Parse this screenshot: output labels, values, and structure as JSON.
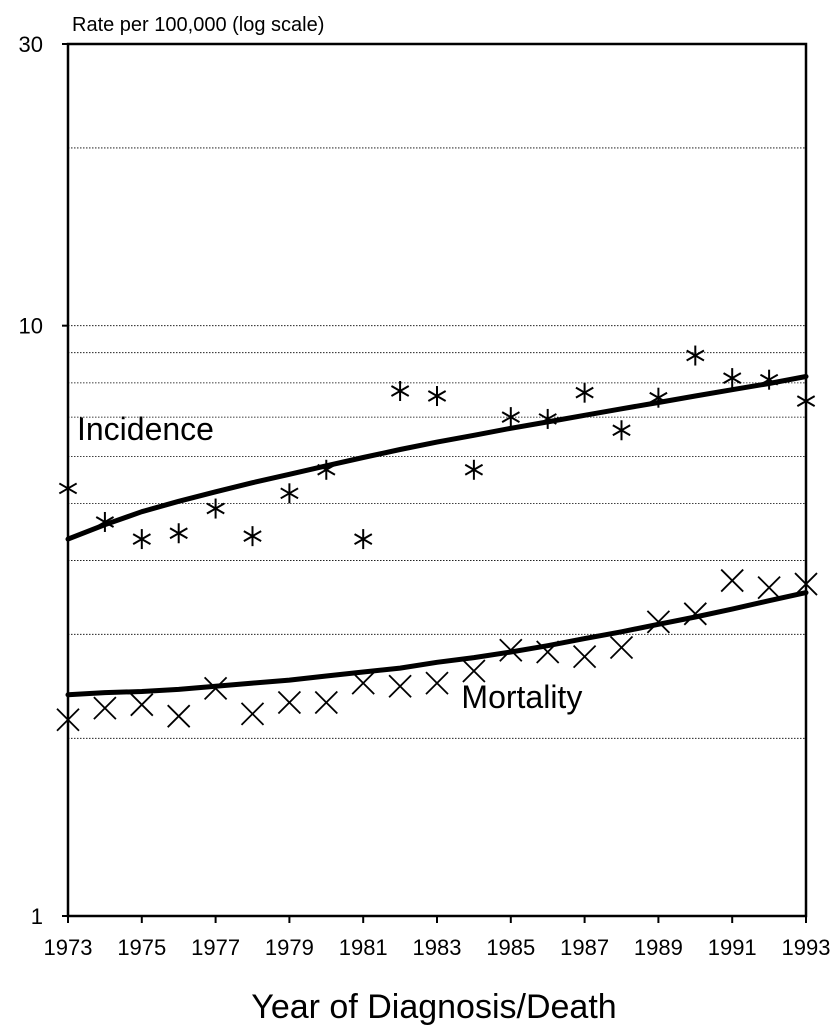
{
  "chart_data": {
    "type": "scatter",
    "ylabel": "Rate per 100,000 (log scale)",
    "xlabel": "Year of Diagnosis/Death",
    "yscale": "log",
    "ylim": [
      1,
      30
    ],
    "xlim": [
      1973,
      1993
    ],
    "y_ticks": [
      {
        "value": 1,
        "label": "1"
      },
      {
        "value": 10,
        "label": "10"
      },
      {
        "value": 30,
        "label": "30"
      }
    ],
    "y_gridlines": [
      2,
      3,
      4,
      5,
      6,
      7,
      8,
      9,
      10,
      20
    ],
    "x_ticks": [
      {
        "value": 1973,
        "label": "1973"
      },
      {
        "value": 1975,
        "label": "1975"
      },
      {
        "value": 1977,
        "label": "1977"
      },
      {
        "value": 1979,
        "label": "1979"
      },
      {
        "value": 1981,
        "label": "1981"
      },
      {
        "value": 1983,
        "label": "1983"
      },
      {
        "value": 1985,
        "label": "1985"
      },
      {
        "value": 1987,
        "label": "1987"
      },
      {
        "value": 1989,
        "label": "1989"
      },
      {
        "value": 1991,
        "label": "1991"
      },
      {
        "value": 1993,
        "label": "1993"
      }
    ],
    "series": [
      {
        "name": "Incidence",
        "marker": "asterisk",
        "label_at": [
          1975.1,
          6.4
        ],
        "x": [
          1973,
          1974,
          1975,
          1976,
          1977,
          1978,
          1979,
          1980,
          1981,
          1982,
          1983,
          1984,
          1985,
          1986,
          1987,
          1988,
          1989,
          1990,
          1991,
          1992,
          1993
        ],
        "y": [
          5.3,
          4.65,
          4.35,
          4.45,
          4.9,
          4.4,
          5.2,
          5.7,
          4.35,
          7.75,
          7.6,
          5.7,
          7.0,
          6.95,
          7.7,
          6.65,
          7.55,
          8.9,
          8.15,
          8.1,
          7.45
        ],
        "trend": [
          4.35,
          4.6,
          4.84,
          5.04,
          5.23,
          5.42,
          5.6,
          5.79,
          5.98,
          6.17,
          6.35,
          6.52,
          6.7,
          6.87,
          7.05,
          7.23,
          7.41,
          7.6,
          7.79,
          7.98,
          8.2
        ]
      },
      {
        "name": "Mortality",
        "marker": "x",
        "label_at": [
          1985.3,
          2.25
        ],
        "x": [
          1973,
          1974,
          1975,
          1976,
          1977,
          1978,
          1979,
          1980,
          1981,
          1982,
          1983,
          1984,
          1985,
          1986,
          1987,
          1988,
          1989,
          1990,
          1991,
          1992,
          1993
        ],
        "y": [
          2.15,
          2.25,
          2.28,
          2.18,
          2.43,
          2.2,
          2.3,
          2.3,
          2.48,
          2.45,
          2.48,
          2.6,
          2.82,
          2.8,
          2.75,
          2.85,
          3.15,
          3.25,
          3.7,
          3.6,
          3.65
        ],
        "trend": [
          2.37,
          2.39,
          2.4,
          2.42,
          2.45,
          2.48,
          2.51,
          2.55,
          2.59,
          2.63,
          2.69,
          2.74,
          2.8,
          2.87,
          2.95,
          3.03,
          3.12,
          3.21,
          3.31,
          3.42,
          3.53
        ]
      }
    ]
  }
}
